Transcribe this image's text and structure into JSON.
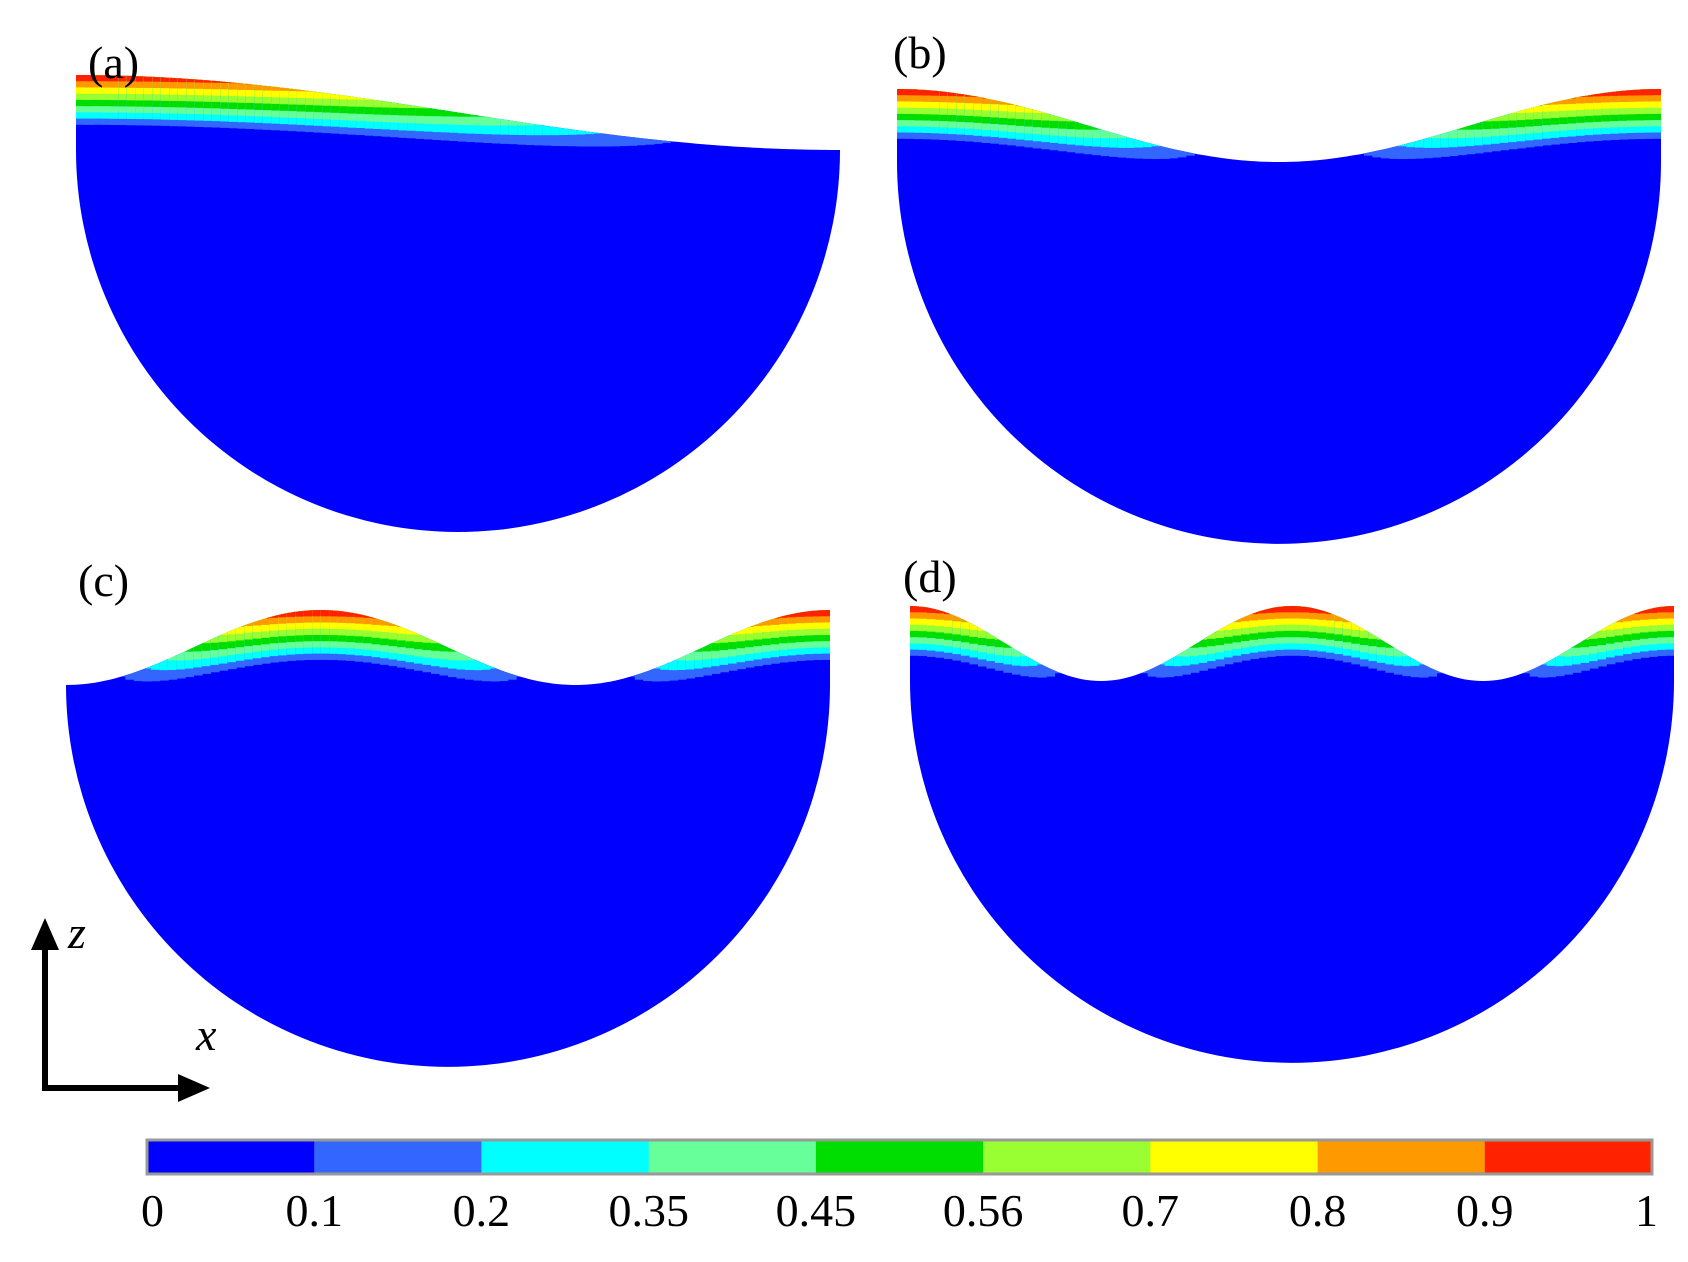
{
  "panels": [
    {
      "label": "(a)",
      "modes": 1,
      "phase": 0
    },
    {
      "label": "(b)",
      "modes": 2,
      "phase": 0
    },
    {
      "label": "(c)",
      "modes": 3,
      "phase": 1
    },
    {
      "label": "(d)",
      "modes": 4,
      "phase": 0
    }
  ],
  "axes": {
    "vertical": "z",
    "horizontal": "x"
  },
  "colorbar": {
    "colors": [
      "#0000ff",
      "#3366ff",
      "#00ffff",
      "#66ff99",
      "#00dd00",
      "#99ff33",
      "#ffff00",
      "#ff9900",
      "#ff2200"
    ],
    "tick_labels": [
      "0",
      "0.1",
      "0.2",
      "0.35",
      "0.45",
      "0.56",
      "0.7",
      "0.8",
      "0.9",
      "1"
    ]
  },
  "colors": {
    "body": "#0000ff",
    "axis": "#000000"
  }
}
